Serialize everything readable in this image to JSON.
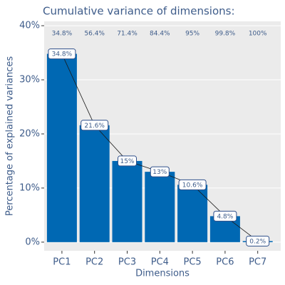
{
  "chart_data": {
    "type": "bar",
    "title": "Cumulative variance of dimensions:",
    "x_label": "Dimensions",
    "y_label": "Percentage of explained variances",
    "categories": [
      "PC1",
      "PC2",
      "PC3",
      "PC4",
      "PC5",
      "PC6",
      "PC7"
    ],
    "values": [
      34.8,
      21.6,
      15,
      13,
      10.6,
      4.8,
      0.2
    ],
    "value_labels": [
      "34.8%",
      "21.6%",
      "15%",
      "13%",
      "10.6%",
      "4.8%",
      "0.2%"
    ],
    "cumulative": {
      "values": [
        34.8,
        56.4,
        71.4,
        84.4,
        95,
        99.8,
        100
      ],
      "value_labels": [
        "34.8%",
        "56.4%",
        "71.4%",
        "84.4%",
        "95%",
        "99.8%",
        "100%"
      ]
    },
    "color": "#0068b3",
    "line_color": "#1a1a1a",
    "ylim": [
      -1.6,
      40.8
    ],
    "yticks": [
      {
        "value": 0,
        "label": "0%"
      },
      {
        "value": 10,
        "label": "10%"
      },
      {
        "value": 20,
        "label": "20%"
      },
      {
        "value": 30,
        "label": "30%"
      },
      {
        "value": 40,
        "label": "40%"
      }
    ],
    "grid": true
  }
}
